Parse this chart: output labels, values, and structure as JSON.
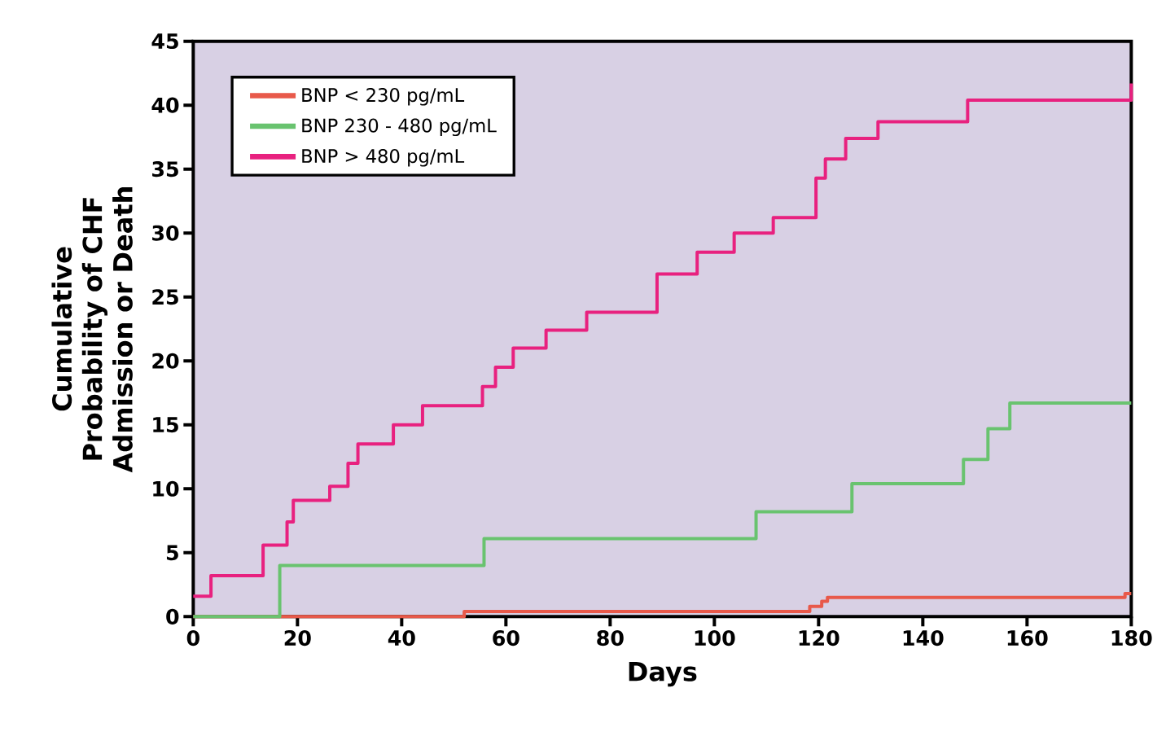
{
  "chart_data": {
    "type": "step",
    "xlabel": "Days",
    "ylabel": "Cumulative Probability of CHF Admission or Death",
    "xlim": [
      0,
      180
    ],
    "ylim": [
      0,
      45
    ],
    "xticks": [
      0,
      20,
      40,
      60,
      80,
      100,
      120,
      140,
      160,
      180
    ],
    "yticks": [
      0,
      5,
      10,
      15,
      20,
      25,
      30,
      35,
      40,
      45
    ],
    "legend": "top left",
    "grid": false,
    "marker": "none",
    "line_style": "solid",
    "series": [
      {
        "name": "BNP < 230 pg/mL",
        "color": "#e8594a",
        "x": [
          0,
          52,
          118.3,
          120.6,
          121.7,
          178.8,
          180
        ],
        "values": [
          0,
          0.4,
          0.8,
          1.2,
          1.5,
          1.8,
          1.8
        ]
      },
      {
        "name": "BNP 230 - 480 pg/mL",
        "color": "#69c36f",
        "x": [
          0,
          16.6,
          55.8,
          108,
          126.4,
          147.8,
          152.5,
          156.7,
          180
        ],
        "values": [
          0,
          4.0,
          6.1,
          8.2,
          10.4,
          12.3,
          14.7,
          16.7,
          16.7
        ]
      },
      {
        "name": "BNP > 480 pg/mL",
        "color": "#e8217f",
        "x": [
          0,
          3.4,
          13.4,
          18,
          19.2,
          26.2,
          29.7,
          31.6,
          38.4,
          44,
          55.5,
          58,
          61.4,
          67.7,
          75.5,
          89,
          96.7,
          103.8,
          111.3,
          119.5,
          121.3,
          125.2,
          131.4,
          148.6,
          180
        ],
        "values": [
          1.6,
          3.2,
          5.6,
          7.4,
          9.1,
          10.2,
          12.0,
          13.5,
          15.0,
          16.5,
          18.0,
          19.5,
          21.0,
          22.4,
          23.8,
          26.8,
          28.5,
          30.0,
          31.2,
          34.3,
          35.8,
          37.4,
          38.7,
          40.4,
          41.7
        ]
      }
    ]
  }
}
